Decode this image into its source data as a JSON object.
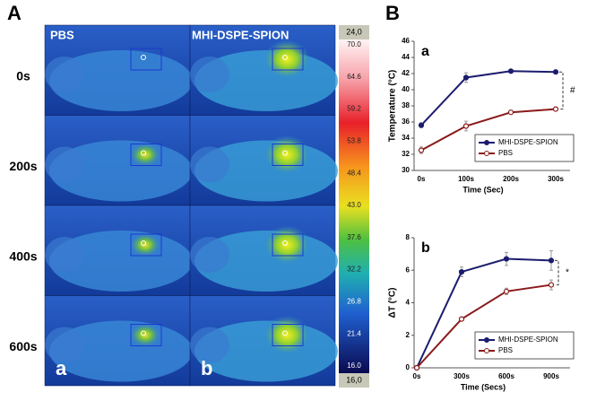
{
  "panel_A": {
    "label": "A",
    "columns": [
      "PBS",
      "MHI-DSPE-SPION"
    ],
    "rows": [
      "0s",
      "200s",
      "400s",
      "600s"
    ],
    "sublabels": [
      "a",
      "b"
    ],
    "colorbar": {
      "top": "24,0",
      "ticks": [
        "70.0",
        "64.6",
        "59.2",
        "53.8",
        "48.4",
        "43.0",
        "37.6",
        "32.2",
        "26.8",
        "21.4",
        "16.0"
      ],
      "bottom": "16,0"
    }
  },
  "panel_B": {
    "label": "B"
  },
  "chart_data": [
    {
      "type": "line",
      "panel_label": "a",
      "xlabel": "Time (Sec)",
      "ylabel": "Temperature (°C)",
      "categories": [
        "0s",
        "100s",
        "200s",
        "300s"
      ],
      "series": [
        {
          "name": "MHI-DSPE-SPION",
          "color": "#1c1c6e",
          "values": [
            35.6,
            41.5,
            42.3,
            42.2
          ],
          "errors": [
            0.3,
            0.6,
            0.1,
            0.2
          ]
        },
        {
          "name": "PBS",
          "color": "#8b1a1a",
          "values": [
            32.5,
            35.5,
            37.2,
            37.6
          ],
          "errors": [
            0.4,
            0.6,
            0.2,
            0.2
          ]
        }
      ],
      "ylim": [
        30,
        46
      ],
      "yticks": [
        30,
        32,
        34,
        36,
        38,
        40,
        42,
        44,
        46
      ],
      "annotation": "#",
      "legend": "lower right"
    },
    {
      "type": "line",
      "panel_label": "b",
      "xlabel": "Time (Secs)",
      "ylabel": "ΔT (°C)",
      "categories": [
        "0s",
        "300s",
        "600s",
        "900s"
      ],
      "series": [
        {
          "name": "MHI-DSPE-SPION",
          "color": "#1c1c6e",
          "values": [
            0,
            5.9,
            6.7,
            6.6
          ],
          "errors": [
            0,
            0.3,
            0.4,
            0.6
          ]
        },
        {
          "name": "PBS",
          "color": "#8b1a1a",
          "values": [
            0,
            3.0,
            4.7,
            5.1
          ],
          "errors": [
            0,
            0.1,
            0.2,
            0.3
          ]
        }
      ],
      "ylim": [
        0,
        8
      ],
      "yticks": [
        0,
        2,
        4,
        6,
        8
      ],
      "annotation": "*",
      "legend": "lower right"
    }
  ]
}
